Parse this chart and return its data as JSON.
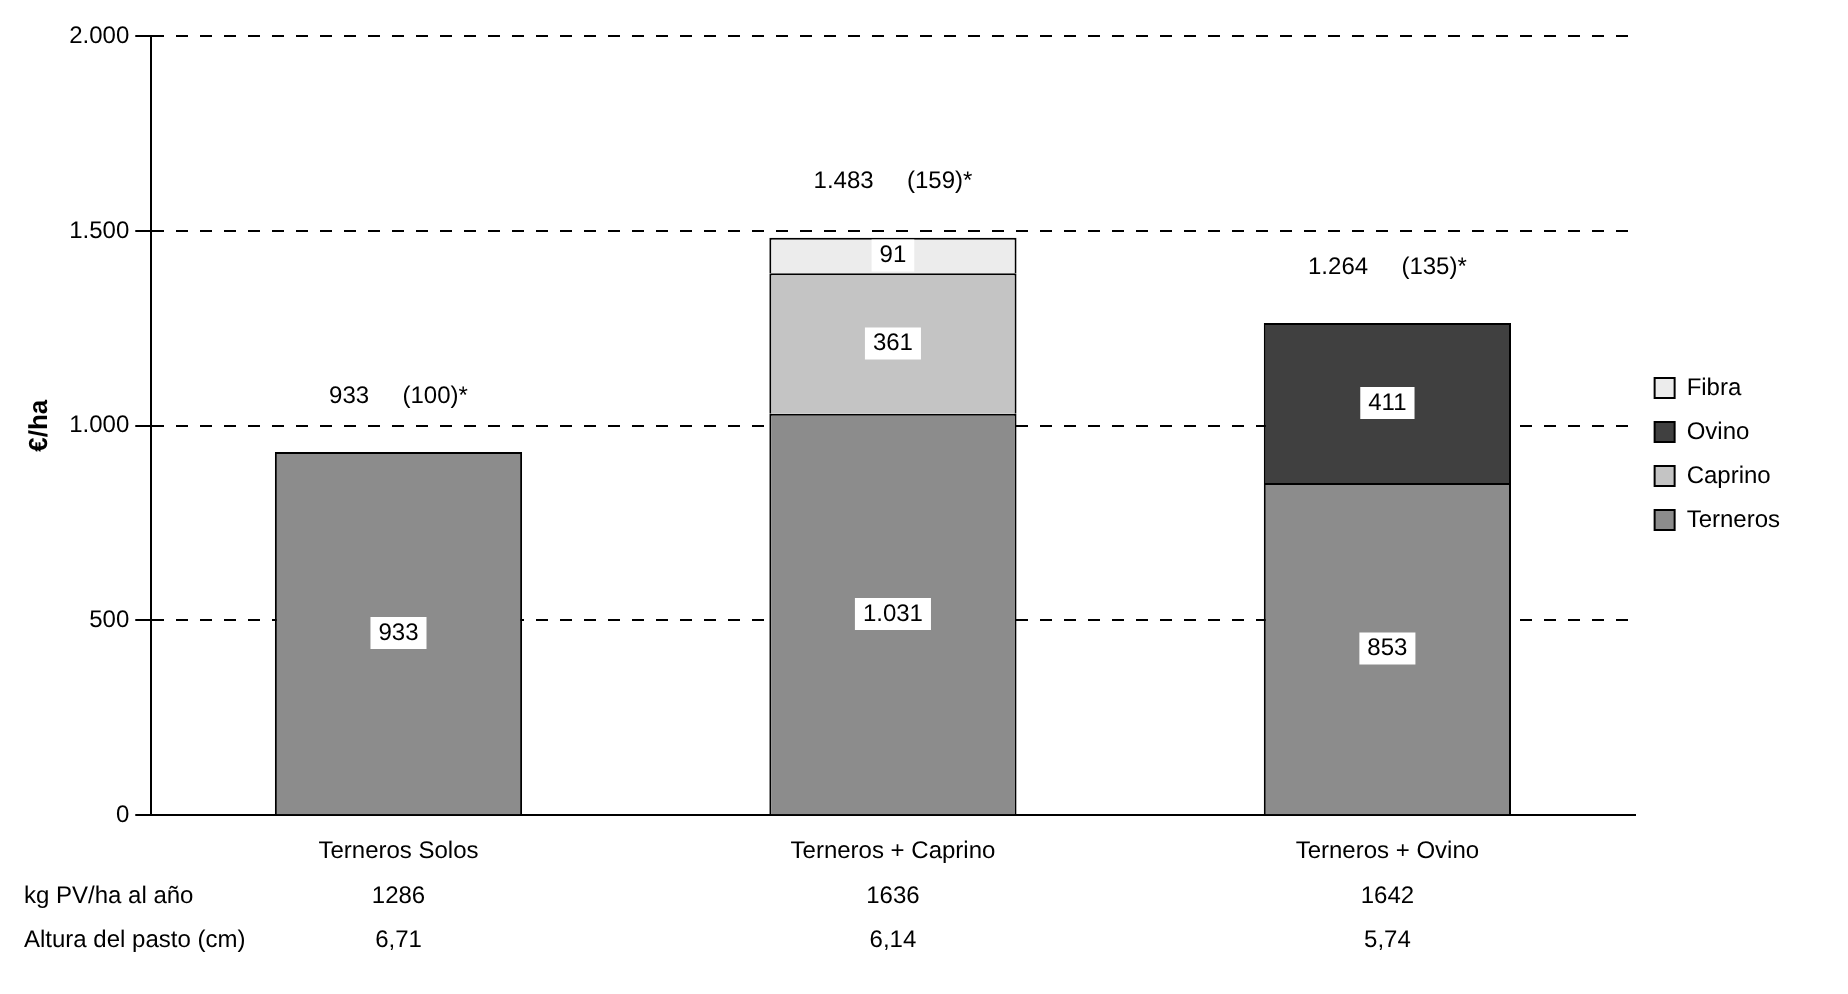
{
  "chart_data": {
    "type": "bar",
    "stacked": true,
    "ylabel": "€/ha",
    "categories": [
      "Terneros Solos",
      "Terneros + Caprino",
      "Terneros + Ovino"
    ],
    "series": [
      {
        "name": "Terneros",
        "color": "#8c8c8c",
        "values": [
          933,
          1031,
          853
        ],
        "value_labels": [
          "933",
          "1.031",
          "853"
        ]
      },
      {
        "name": "Caprino",
        "color": "#c4c4c4",
        "values": [
          null,
          361,
          null
        ],
        "value_labels": [
          null,
          "361",
          null
        ]
      },
      {
        "name": "Ovino",
        "color": "#404040",
        "values": [
          null,
          null,
          411
        ],
        "value_labels": [
          null,
          null,
          "411"
        ]
      },
      {
        "name": "Fibra",
        "color": "#ececec",
        "values": [
          null,
          91,
          null
        ],
        "value_labels": [
          null,
          "91",
          null
        ]
      }
    ],
    "totals": [
      "933     (100)*",
      "1.483     (159)*",
      "1.264     (135)*"
    ],
    "ylim": [
      0,
      2000
    ],
    "yticks": [
      {
        "value": 0,
        "label": "0"
      },
      {
        "value": 500,
        "label": "500"
      },
      {
        "value": 1000,
        "label": "1.000"
      },
      {
        "value": 1500,
        "label": "1.500"
      },
      {
        "value": 2000,
        "label": "2.000"
      }
    ],
    "grid": "y",
    "legend": "right",
    "annotations": [
      "kg PV/ha al año",
      "1286",
      "1636",
      "1642",
      "Altura del pasto (cm)",
      "6,71",
      "6,14",
      "5,74"
    ]
  }
}
